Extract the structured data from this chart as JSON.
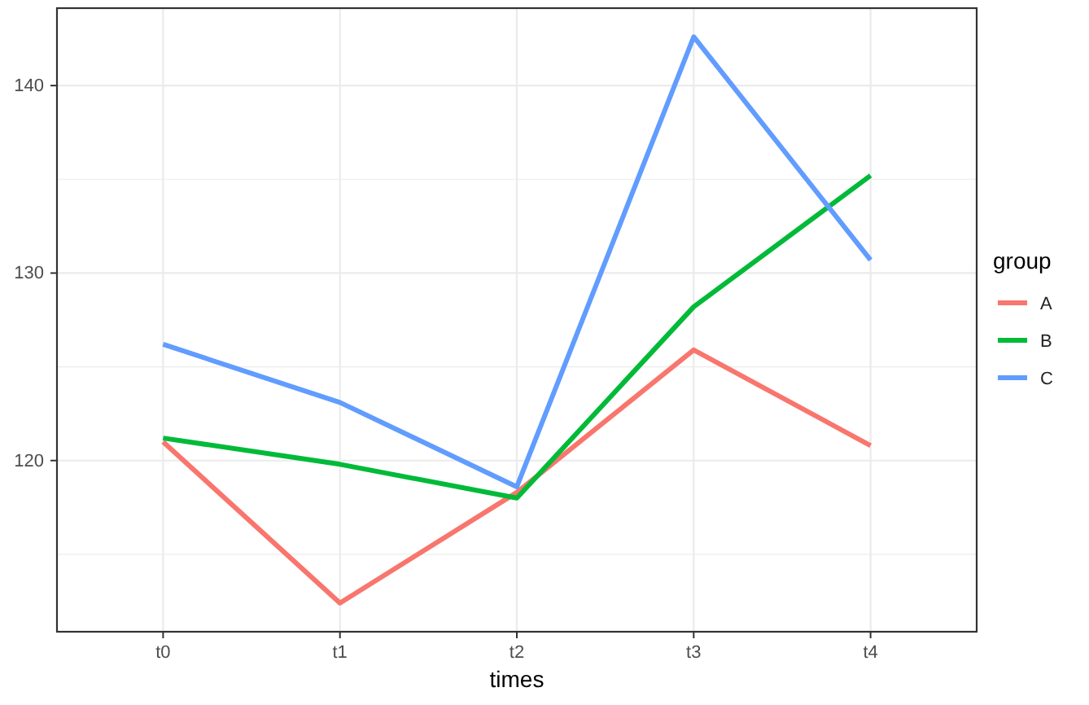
{
  "chart_data": {
    "type": "line",
    "xlabel": "times",
    "legend_title": "group",
    "legend": "right",
    "grid": true,
    "categories": [
      "t0",
      "t1",
      "t2",
      "t3",
      "t4"
    ],
    "ylim": [
      110.87,
      144.13
    ],
    "yticks": [
      120,
      130,
      140
    ],
    "series": [
      {
        "name": "A",
        "color": "#f8766d",
        "values": [
          121.0,
          112.4,
          118.3,
          125.9,
          120.8
        ]
      },
      {
        "name": "B",
        "color": "#00ba38",
        "values": [
          121.2,
          119.8,
          118.0,
          128.2,
          135.2
        ]
      },
      {
        "name": "C",
        "color": "#619cff",
        "values": [
          126.2,
          123.1,
          118.6,
          142.6,
          130.7
        ]
      }
    ]
  }
}
